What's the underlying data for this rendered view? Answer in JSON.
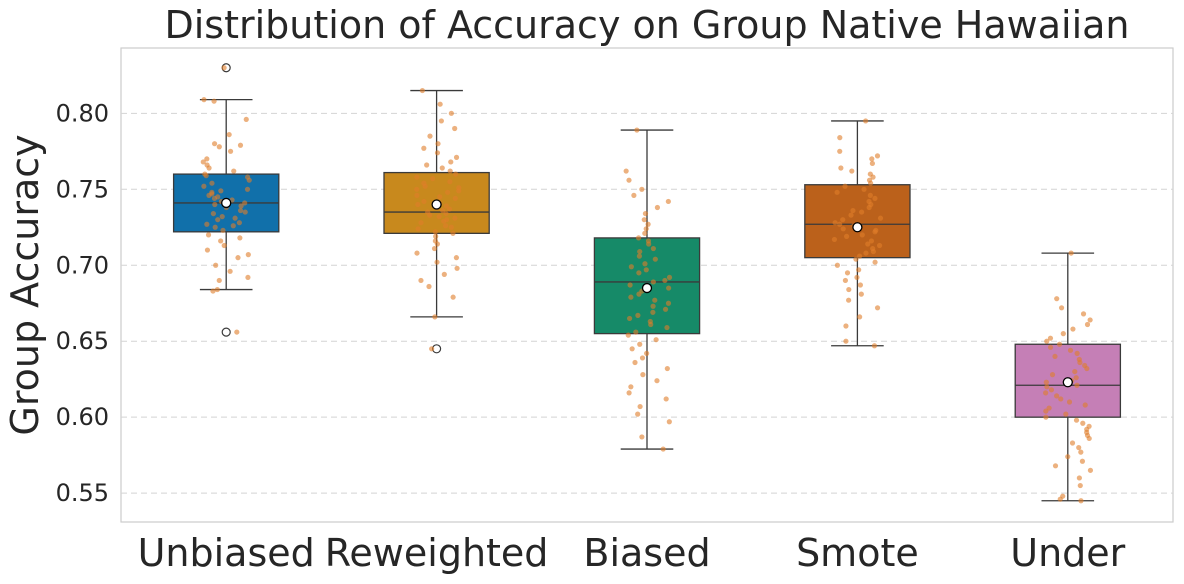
{
  "chart_data": {
    "type": "box",
    "title": "Distribution of Accuracy on Group Native Hawaiian",
    "xlabel": "",
    "ylabel": "Group Accuracy",
    "ylim": [
      0.531,
      0.843
    ],
    "yticks": [
      0.55,
      0.6,
      0.65,
      0.7,
      0.75,
      0.8
    ],
    "ytick_labels": [
      "0.55",
      "0.60",
      "0.65",
      "0.70",
      "0.75",
      "0.80"
    ],
    "grid": true,
    "categories": [
      "Unbiased",
      "Reweighted",
      "Biased",
      "Smote",
      "Under"
    ],
    "boxes": [
      {
        "name": "Unbiased",
        "color": "#1170aa",
        "q1": 0.722,
        "median": 0.741,
        "q3": 0.76,
        "whisker_low": 0.684,
        "whisker_high": 0.809,
        "mean": 0.741,
        "outliers": [
          0.83,
          0.656
        ]
      },
      {
        "name": "Reweighted",
        "color": "#c8891d",
        "q1": 0.721,
        "median": 0.735,
        "q3": 0.761,
        "whisker_low": 0.666,
        "whisker_high": 0.815,
        "mean": 0.74,
        "outliers": [
          0.645
        ]
      },
      {
        "name": "Biased",
        "color": "#168a68",
        "q1": 0.655,
        "median": 0.689,
        "q3": 0.718,
        "whisker_low": 0.579,
        "whisker_high": 0.789,
        "mean": 0.685,
        "outliers": []
      },
      {
        "name": "Smote",
        "color": "#bb611b",
        "q1": 0.705,
        "median": 0.727,
        "q3": 0.753,
        "whisker_low": 0.647,
        "whisker_high": 0.795,
        "mean": 0.725,
        "outliers": []
      },
      {
        "name": "Under",
        "color": "#c57fb6",
        "q1": 0.6,
        "median": 0.621,
        "q3": 0.648,
        "whisker_low": 0.545,
        "whisker_high": 0.708,
        "mean": 0.623,
        "outliers": []
      }
    ],
    "jitter_points": {
      "color": "#e07d2a",
      "Unbiased": [
        0.83,
        0.809,
        0.808,
        0.796,
        0.786,
        0.78,
        0.779,
        0.778,
        0.775,
        0.77,
        0.768,
        0.766,
        0.764,
        0.762,
        0.76,
        0.759,
        0.758,
        0.756,
        0.754,
        0.752,
        0.75,
        0.749,
        0.748,
        0.747,
        0.746,
        0.745,
        0.744,
        0.743,
        0.742,
        0.741,
        0.74,
        0.739,
        0.738,
        0.736,
        0.735,
        0.734,
        0.732,
        0.731,
        0.73,
        0.728,
        0.727,
        0.726,
        0.725,
        0.723,
        0.72,
        0.718,
        0.716,
        0.713,
        0.71,
        0.707,
        0.705,
        0.7,
        0.696,
        0.692,
        0.69,
        0.684,
        0.683,
        0.656
      ],
      "Reweighted": [
        0.815,
        0.806,
        0.8,
        0.795,
        0.79,
        0.785,
        0.78,
        0.777,
        0.774,
        0.771,
        0.768,
        0.766,
        0.764,
        0.762,
        0.76,
        0.758,
        0.757,
        0.755,
        0.754,
        0.752,
        0.751,
        0.75,
        0.749,
        0.748,
        0.746,
        0.745,
        0.744,
        0.742,
        0.741,
        0.74,
        0.739,
        0.738,
        0.737,
        0.736,
        0.735,
        0.734,
        0.733,
        0.732,
        0.731,
        0.73,
        0.729,
        0.728,
        0.726,
        0.725,
        0.724,
        0.722,
        0.721,
        0.719,
        0.716,
        0.714,
        0.711,
        0.708,
        0.705,
        0.702,
        0.698,
        0.694,
        0.69,
        0.686,
        0.679,
        0.666,
        0.645
      ],
      "Biased": [
        0.789,
        0.762,
        0.756,
        0.75,
        0.746,
        0.742,
        0.738,
        0.734,
        0.73,
        0.727,
        0.724,
        0.721,
        0.718,
        0.716,
        0.714,
        0.711,
        0.709,
        0.706,
        0.704,
        0.701,
        0.699,
        0.697,
        0.695,
        0.692,
        0.69,
        0.689,
        0.687,
        0.685,
        0.683,
        0.681,
        0.679,
        0.677,
        0.675,
        0.673,
        0.671,
        0.669,
        0.667,
        0.665,
        0.663,
        0.661,
        0.659,
        0.656,
        0.654,
        0.651,
        0.648,
        0.645,
        0.642,
        0.639,
        0.636,
        0.632,
        0.628,
        0.624,
        0.62,
        0.616,
        0.612,
        0.607,
        0.602,
        0.597,
        0.587,
        0.579
      ],
      "Smote": [
        0.795,
        0.784,
        0.775,
        0.772,
        0.77,
        0.767,
        0.764,
        0.762,
        0.76,
        0.758,
        0.756,
        0.754,
        0.752,
        0.75,
        0.748,
        0.746,
        0.744,
        0.742,
        0.74,
        0.738,
        0.736,
        0.735,
        0.733,
        0.731,
        0.73,
        0.728,
        0.727,
        0.726,
        0.724,
        0.723,
        0.722,
        0.72,
        0.719,
        0.717,
        0.716,
        0.714,
        0.713,
        0.711,
        0.709,
        0.708,
        0.706,
        0.704,
        0.702,
        0.7,
        0.697,
        0.695,
        0.692,
        0.69,
        0.687,
        0.684,
        0.681,
        0.677,
        0.672,
        0.666,
        0.66,
        0.65,
        0.647
      ],
      "Under": [
        0.708,
        0.678,
        0.672,
        0.668,
        0.664,
        0.661,
        0.658,
        0.655,
        0.652,
        0.65,
        0.648,
        0.646,
        0.644,
        0.642,
        0.64,
        0.638,
        0.636,
        0.634,
        0.632,
        0.63,
        0.628,
        0.626,
        0.624,
        0.623,
        0.621,
        0.62,
        0.618,
        0.616,
        0.614,
        0.612,
        0.61,
        0.608,
        0.606,
        0.604,
        0.602,
        0.6,
        0.598,
        0.596,
        0.594,
        0.592,
        0.59,
        0.588,
        0.586,
        0.583,
        0.58,
        0.577,
        0.574,
        0.571,
        0.568,
        0.565,
        0.56,
        0.555,
        0.548,
        0.546,
        0.545
      ]
    }
  }
}
